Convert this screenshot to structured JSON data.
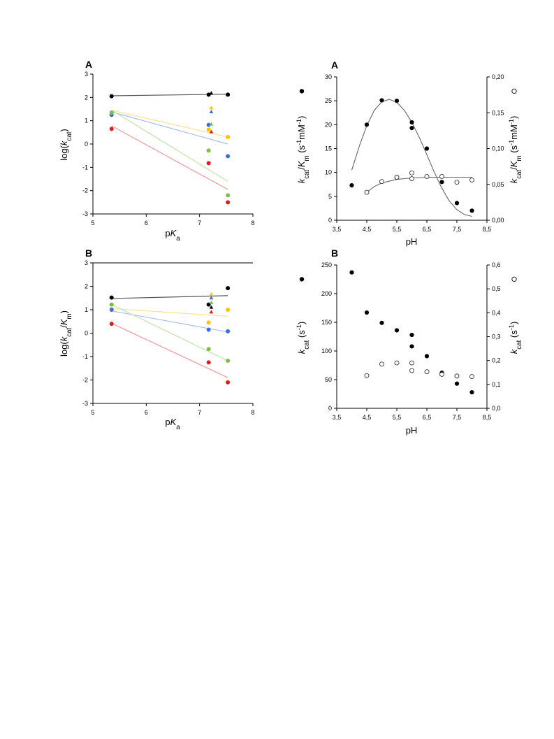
{
  "chart_data": [
    {
      "type": "scatter",
      "panel": "A",
      "xlabel": "pKa",
      "ylabel": "log(kcat)",
      "xlim": [
        5,
        8
      ],
      "ylim": [
        -3,
        3
      ],
      "xticks": [
        "5",
        "6",
        "7",
        "8"
      ],
      "yticks": [
        "-3",
        "-2",
        "-1",
        "0",
        "1",
        "2",
        "3"
      ],
      "grid": false,
      "series": [
        {
          "color": "#000000",
          "marker": "circle",
          "x": [
            5.35,
            7.17,
            7.53
          ],
          "y": [
            2.05,
            2.12,
            2.12
          ],
          "fit": [
            [
              5.35,
              2.07
            ],
            [
              7.53,
              2.14
            ]
          ]
        },
        {
          "color": "#000000",
          "marker": "triangle",
          "x": [
            7.22
          ],
          "y": [
            2.18
          ]
        },
        {
          "color": "#ffc000",
          "marker": "circle",
          "x": [
            5.35,
            7.17,
            7.53
          ],
          "y": [
            1.32,
            0.62,
            0.3
          ],
          "fit": [
            [
              5.35,
              1.45
            ],
            [
              7.53,
              0.3
            ]
          ]
        },
        {
          "color": "#ffc000",
          "marker": "triangle",
          "x": [
            7.22
          ],
          "y": [
            1.55
          ]
        },
        {
          "color": "#3a6fe0",
          "marker": "circle",
          "x": [
            5.35,
            7.17,
            7.53
          ],
          "y": [
            1.25,
            0.82,
            -0.52
          ],
          "fit": [
            [
              5.35,
              1.38
            ],
            [
              7.53,
              0.0
            ]
          ]
        },
        {
          "color": "#3a6fe0",
          "marker": "triangle",
          "x": [
            7.22
          ],
          "y": [
            1.38
          ]
        },
        {
          "color": "#7ac142",
          "marker": "circle",
          "x": [
            5.35,
            7.17,
            7.53
          ],
          "y": [
            1.35,
            -0.28,
            -2.2
          ],
          "fit": [
            [
              5.35,
              1.45
            ],
            [
              7.53,
              -1.6
            ]
          ]
        },
        {
          "color": "#7ac142",
          "marker": "triangle",
          "x": [
            7.22
          ],
          "y": [
            0.85
          ]
        },
        {
          "color": "#e31a1c",
          "marker": "circle",
          "x": [
            5.35,
            7.17,
            7.53
          ],
          "y": [
            0.65,
            -0.82,
            -2.5
          ],
          "fit": [
            [
              5.35,
              0.78
            ],
            [
              7.53,
              -1.95
            ]
          ]
        },
        {
          "color": "#e31a1c",
          "marker": "triangle",
          "x": [
            7.22
          ],
          "y": [
            0.52
          ]
        }
      ]
    },
    {
      "type": "scatter",
      "panel": "B",
      "xlabel": "pKa",
      "ylabel": "log(kcat/Km)",
      "xlim": [
        5,
        8
      ],
      "ylim": [
        -3,
        3
      ],
      "xticks": [
        "5",
        "6",
        "7",
        "8"
      ],
      "yticks": [
        "-3",
        "-2",
        "-1",
        "0",
        "1",
        "2",
        "3"
      ],
      "grid": false,
      "series": [
        {
          "color": "#000000",
          "marker": "circle",
          "x": [
            5.35,
            7.17,
            7.53
          ],
          "y": [
            1.52,
            1.22,
            1.92
          ],
          "fit": [
            [
              5.35,
              1.48
            ],
            [
              7.53,
              1.6
            ]
          ]
        },
        {
          "color": "#000000",
          "marker": "triangle",
          "x": [
            7.22
          ],
          "y": [
            1.1
          ]
        },
        {
          "color": "#ffc000",
          "marker": "circle",
          "x": [
            5.35,
            7.17,
            7.53
          ],
          "y": [
            1.02,
            0.45,
            1.0
          ],
          "fit": [
            [
              5.35,
              1.05
            ],
            [
              7.53,
              0.72
            ]
          ]
        },
        {
          "color": "#ffc000",
          "marker": "triangle",
          "x": [
            7.22
          ],
          "y": [
            1.65
          ]
        },
        {
          "color": "#3a6fe0",
          "marker": "circle",
          "x": [
            5.35,
            7.17,
            7.53
          ],
          "y": [
            1.0,
            0.15,
            0.08
          ],
          "fit": [
            [
              5.35,
              0.95
            ],
            [
              7.53,
              0.05
            ]
          ]
        },
        {
          "color": "#3a6fe0",
          "marker": "triangle",
          "x": [
            7.22
          ],
          "y": [
            1.5
          ]
        },
        {
          "color": "#7ac142",
          "marker": "circle",
          "x": [
            5.35,
            7.17,
            7.53
          ],
          "y": [
            1.22,
            -0.68,
            -1.18
          ],
          "fit": [
            [
              5.35,
              1.22
            ],
            [
              7.53,
              -1.18
            ]
          ]
        },
        {
          "color": "#7ac142",
          "marker": "triangle",
          "x": [
            7.22
          ],
          "y": [
            1.3
          ]
        },
        {
          "color": "#e31a1c",
          "marker": "circle",
          "x": [
            5.35,
            7.17,
            7.53
          ],
          "y": [
            0.4,
            -1.25,
            -2.1
          ],
          "fit": [
            [
              5.35,
              0.42
            ],
            [
              7.53,
              -1.9
            ]
          ]
        },
        {
          "color": "#e31a1c",
          "marker": "triangle",
          "x": [
            7.22
          ],
          "y": [
            0.9
          ]
        }
      ]
    },
    {
      "type": "scatter",
      "panel": "A",
      "xlabel": "pH",
      "ylabel": "kcat/Km (s-1mM-1)",
      "y2label": "kcat/Km (s-1mM-1)",
      "xlim": [
        3.5,
        8.5
      ],
      "ylim": [
        0,
        30
      ],
      "y2lim": [
        0,
        0.2
      ],
      "xticks": [
        "3,5",
        "4,5",
        "5,5",
        "6,5",
        "7,5",
        "8,5"
      ],
      "yticks": [
        "0",
        "5",
        "10",
        "15",
        "20",
        "25",
        "30"
      ],
      "y2ticks": [
        "0,00",
        "0,05",
        "0,10",
        "0,15",
        "0,20"
      ],
      "grid": false,
      "series": [
        {
          "axis": "left",
          "marker": "filled-circle",
          "x": [
            4.0,
            4.5,
            5.0,
            5.5,
            6.0,
            6.0,
            6.5,
            7.0,
            7.5,
            8.0
          ],
          "y": [
            7.3,
            20,
            25.1,
            25,
            20.5,
            19.3,
            15,
            8,
            3.6,
            2
          ]
        },
        {
          "axis": "right",
          "marker": "open-circle",
          "x": [
            4.5,
            5.0,
            5.5,
            6.0,
            6.0,
            6.5,
            7.0,
            7.5,
            8.0
          ],
          "y": [
            0.039,
            0.054,
            0.06,
            0.066,
            0.058,
            0.061,
            0.061,
            0.053,
            0.056
          ]
        }
      ],
      "curves": [
        {
          "axis": "left",
          "x": [
            4.0,
            4.25,
            4.5,
            4.75,
            5.0,
            5.25,
            5.5,
            5.75,
            6.0,
            6.25,
            6.5,
            6.75,
            7.0,
            7.25,
            7.5,
            7.75,
            8.0
          ],
          "y": [
            10.5,
            15.5,
            19.8,
            23,
            24.8,
            25.3,
            24.7,
            23,
            20.5,
            17.3,
            13.7,
            10,
            6.7,
            4,
            2.2,
            1.2,
            0.8
          ]
        },
        {
          "axis": "right",
          "x": [
            4.5,
            4.75,
            5.0,
            5.5,
            6.0,
            6.5,
            7.0,
            7.5,
            8.0
          ],
          "y": [
            0.039,
            0.047,
            0.052,
            0.057,
            0.059,
            0.06,
            0.06,
            0.06,
            0.06
          ]
        }
      ]
    },
    {
      "type": "scatter",
      "panel": "B",
      "xlabel": "pH",
      "ylabel": "kcat (s-1)",
      "y2label": "kcat (s-1)",
      "xlim": [
        3.5,
        8.5
      ],
      "ylim": [
        0,
        250
      ],
      "y2lim": [
        0,
        0.6
      ],
      "xticks": [
        "3,5",
        "4,5",
        "5,5",
        "6,5",
        "7,5",
        "8,5"
      ],
      "yticks": [
        "0",
        "50",
        "100",
        "150",
        "200",
        "250"
      ],
      "y2ticks": [
        "0,0",
        "0,1",
        "0,2",
        "0,3",
        "0,4",
        "0,5",
        "0,6"
      ],
      "grid": false,
      "series": [
        {
          "axis": "left",
          "marker": "filled-circle",
          "x": [
            4.0,
            4.5,
            5.0,
            5.5,
            6.0,
            6.0,
            6.5,
            7.0,
            7.5,
            8.0
          ],
          "y": [
            237,
            167,
            149,
            136,
            128,
            108,
            91,
            62,
            43,
            28
          ]
        },
        {
          "axis": "right",
          "marker": "open-circle",
          "x": [
            4.5,
            5.0,
            5.5,
            6.0,
            6.0,
            6.5,
            7.0,
            7.5,
            8.0
          ],
          "y": [
            0.137,
            0.185,
            0.19,
            0.19,
            0.158,
            0.153,
            0.142,
            0.135,
            0.133
          ]
        }
      ]
    }
  ]
}
